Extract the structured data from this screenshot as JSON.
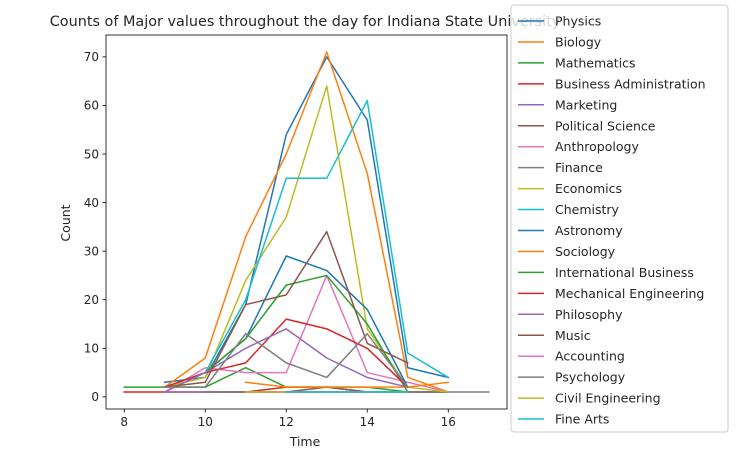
{
  "chart_data": {
    "type": "line",
    "title": "Counts of Major values throughout the day for Indiana State University",
    "xlabel": "Time",
    "ylabel": "Count",
    "xlim": [
      7.55,
      17.45
    ],
    "ylim": [
      -2.5,
      74.5
    ],
    "xticks": [
      8,
      10,
      12,
      14,
      16
    ],
    "yticks": [
      0,
      10,
      20,
      30,
      40,
      50,
      60,
      70
    ],
    "grid": false,
    "legend": "outside right",
    "series": [
      {
        "name": "Physics",
        "color": "#1f77b4",
        "x": [
          9,
          10,
          11,
          12,
          13,
          14,
          15,
          16
        ],
        "y": [
          3,
          4,
          19,
          54,
          70,
          57,
          6,
          4
        ]
      },
      {
        "name": "Biology",
        "color": "#ff7f0e",
        "x": [
          9,
          10,
          11,
          12,
          13,
          14,
          15,
          16
        ],
        "y": [
          2,
          8,
          33,
          50,
          71,
          46,
          4,
          1
        ]
      },
      {
        "name": "Mathematics",
        "color": "#2ca02c",
        "x": [
          8,
          9,
          10,
          11,
          12,
          13,
          14,
          15,
          16
        ],
        "y": [
          2,
          2,
          2,
          6,
          2,
          2,
          2,
          1,
          1
        ]
      },
      {
        "name": "Business Administration",
        "color": "#d62728",
        "x": [
          8,
          9,
          10,
          11,
          12,
          13,
          14,
          15,
          16
        ],
        "y": [
          1,
          1,
          1,
          1,
          2,
          2,
          1,
          1,
          1
        ]
      },
      {
        "name": "Marketing",
        "color": "#9467bd",
        "x": [
          9,
          10,
          11,
          12,
          13,
          14,
          15,
          16
        ],
        "y": [
          1,
          1,
          1,
          1,
          1,
          1,
          1,
          1
        ]
      },
      {
        "name": "Political Science",
        "color": "#8c564b",
        "x": [
          10,
          11,
          12,
          13,
          14,
          15,
          16
        ],
        "y": [
          1,
          1,
          1,
          2,
          1,
          1,
          1
        ]
      },
      {
        "name": "Anthropology",
        "color": "#e377c2",
        "x": [
          9,
          10,
          11,
          12,
          13,
          14,
          15,
          16
        ],
        "y": [
          1,
          6,
          5,
          5,
          25,
          5,
          3,
          1
        ]
      },
      {
        "name": "Finance",
        "color": "#7f7f7f",
        "x": [
          10,
          11,
          12,
          13,
          14,
          15,
          16,
          17
        ],
        "y": [
          1,
          1,
          1,
          1,
          1,
          1,
          1,
          1
        ]
      },
      {
        "name": "Economics",
        "color": "#bcbd22",
        "x": [
          9,
          10,
          11,
          12,
          13,
          14,
          15,
          16
        ],
        "y": [
          2,
          4,
          24,
          37,
          64,
          14,
          2,
          1
        ]
      },
      {
        "name": "Chemistry",
        "color": "#17becf",
        "x": [
          10,
          11,
          12,
          13,
          14,
          15,
          16
        ],
        "y": [
          5,
          20,
          45,
          45,
          61,
          9,
          4
        ]
      },
      {
        "name": "Astronomy",
        "color": "#1f77b4",
        "x": [
          10,
          11,
          12,
          13,
          14,
          15
        ],
        "y": [
          5,
          12,
          29,
          26,
          18,
          2
        ]
      },
      {
        "name": "Sociology",
        "color": "#ff7f0e",
        "x": [
          11,
          12,
          13,
          14,
          15,
          16
        ],
        "y": [
          3,
          2,
          2,
          2,
          2,
          3
        ]
      },
      {
        "name": "International Business",
        "color": "#2ca02c",
        "x": [
          10,
          11,
          12,
          13,
          14,
          15
        ],
        "y": [
          5,
          12,
          23,
          25,
          15,
          1
        ]
      },
      {
        "name": "Mechanical Engineering",
        "color": "#d62728",
        "x": [
          9,
          10,
          11,
          12,
          13,
          14,
          15
        ],
        "y": [
          2,
          5,
          7,
          16,
          14,
          10,
          2
        ]
      },
      {
        "name": "Philosophy",
        "color": "#9467bd",
        "x": [
          9,
          10,
          11,
          12,
          13,
          14,
          15
        ],
        "y": [
          1,
          5,
          10,
          14,
          8,
          4,
          2
        ]
      },
      {
        "name": "Music",
        "color": "#8c564b",
        "x": [
          9,
          10,
          11,
          12,
          13,
          14,
          15
        ],
        "y": [
          2,
          3,
          19,
          21,
          34,
          11,
          7
        ]
      },
      {
        "name": "Accounting",
        "color": "#e377c2",
        "x": [
          11,
          12,
          13,
          14,
          15
        ],
        "y": [
          1,
          1,
          1,
          1,
          1
        ]
      },
      {
        "name": "Psychology",
        "color": "#7f7f7f",
        "x": [
          9,
          10,
          11,
          12,
          13,
          14,
          15
        ],
        "y": [
          2,
          2,
          13,
          7,
          4,
          13,
          2
        ]
      },
      {
        "name": "Civil Engineering",
        "color": "#bcbd22",
        "x": [
          11,
          12,
          13,
          14,
          15
        ],
        "y": [
          1,
          1,
          1,
          1,
          1
        ]
      },
      {
        "name": "Fine Arts",
        "color": "#17becf",
        "x": [
          12,
          13,
          14,
          15
        ],
        "y": [
          1,
          1,
          1,
          1
        ]
      }
    ]
  }
}
